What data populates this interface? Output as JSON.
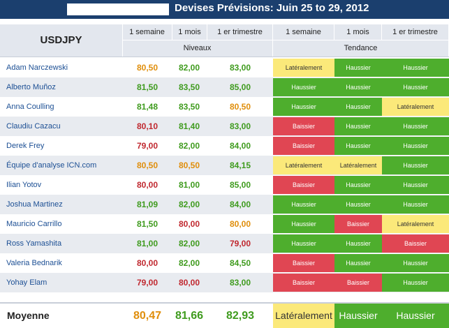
{
  "header": {
    "title": "Devises Prévisions: Juin 25 to 29, 2012",
    "pair": "USDJPY",
    "columns": [
      "1 semaine",
      "1 mois",
      "1 er trimestre",
      "1 semaine",
      "1 mois",
      "1 er trimestre"
    ],
    "groups": {
      "levels": "Niveaux",
      "trend": "Tendance"
    }
  },
  "colors": {
    "green": "#3f9b1e",
    "orange": "#e08e0b",
    "red": "#c0282f",
    "trend_up": "#4eae2d",
    "trend_down": "#e04653",
    "trend_flat": "#fbe97a"
  },
  "rows": [
    {
      "name": "Adam Narczewski",
      "v1": "80,50",
      "c1": "orange",
      "v2": "82,00",
      "c2": "green",
      "v3": "83,00",
      "c3": "green",
      "t1": "Latéralement",
      "k1": "y",
      "t2": "Haussier",
      "k2": "g",
      "t3": "Haussier",
      "k3": "g"
    },
    {
      "name": "Alberto Muñoz",
      "v1": "81,50",
      "c1": "green",
      "v2": "83,50",
      "c2": "green",
      "v3": "85,00",
      "c3": "green",
      "t1": "Haussier",
      "k1": "g",
      "t2": "Haussier",
      "k2": "g",
      "t3": "Haussier",
      "k3": "g"
    },
    {
      "name": "Anna Coulling",
      "v1": "81,48",
      "c1": "green",
      "v2": "83,50",
      "c2": "green",
      "v3": "80,50",
      "c3": "orange",
      "t1": "Haussier",
      "k1": "g",
      "t2": "Haussier",
      "k2": "g",
      "t3": "Latéralement",
      "k3": "y"
    },
    {
      "name": "Claudiu Cazacu",
      "v1": "80,10",
      "c1": "red",
      "v2": "81,40",
      "c2": "green",
      "v3": "83,00",
      "c3": "green",
      "t1": "Baissier",
      "k1": "r",
      "t2": "Haussier",
      "k2": "g",
      "t3": "Haussier",
      "k3": "g"
    },
    {
      "name": "Derek Frey",
      "v1": "79,00",
      "c1": "red",
      "v2": "82,00",
      "c2": "green",
      "v3": "84,00",
      "c3": "green",
      "t1": "Baissier",
      "k1": "r",
      "t2": "Haussier",
      "k2": "g",
      "t3": "Haussier",
      "k3": "g"
    },
    {
      "name": "Équipe d'analyse ICN.com",
      "v1": "80,50",
      "c1": "orange",
      "v2": "80,50",
      "c2": "orange",
      "v3": "84,15",
      "c3": "green",
      "t1": "Latéralement",
      "k1": "y",
      "t2": "Latéralement",
      "k2": "y",
      "t3": "Haussier",
      "k3": "g"
    },
    {
      "name": "Ilian Yotov",
      "v1": "80,00",
      "c1": "red",
      "v2": "81,00",
      "c2": "green",
      "v3": "85,00",
      "c3": "green",
      "t1": "Baissier",
      "k1": "r",
      "t2": "Haussier",
      "k2": "g",
      "t3": "Haussier",
      "k3": "g"
    },
    {
      "name": "Joshua Martinez",
      "v1": "81,09",
      "c1": "green",
      "v2": "82,00",
      "c2": "green",
      "v3": "84,00",
      "c3": "green",
      "t1": "Haussier",
      "k1": "g",
      "t2": "Haussier",
      "k2": "g",
      "t3": "Haussier",
      "k3": "g"
    },
    {
      "name": "Mauricio Carrillo",
      "v1": "81,50",
      "c1": "green",
      "v2": "80,00",
      "c2": "red",
      "v3": "80,00",
      "c3": "orange",
      "t1": "Haussier",
      "k1": "g",
      "t2": "Baissier",
      "k2": "r",
      "t3": "Latéralement",
      "k3": "y"
    },
    {
      "name": "Ross Yamashita",
      "v1": "81,00",
      "c1": "green",
      "v2": "82,00",
      "c2": "green",
      "v3": "79,00",
      "c3": "red",
      "t1": "Haussier",
      "k1": "g",
      "t2": "Haussier",
      "k2": "g",
      "t3": "Baissier",
      "k3": "r"
    },
    {
      "name": "Valeria Bednarik",
      "v1": "80,00",
      "c1": "red",
      "v2": "82,00",
      "c2": "green",
      "v3": "84,50",
      "c3": "green",
      "t1": "Baissier",
      "k1": "r",
      "t2": "Haussier",
      "k2": "g",
      "t3": "Haussier",
      "k3": "g"
    },
    {
      "name": "Yohay Elam",
      "v1": "79,00",
      "c1": "red",
      "v2": "80,00",
      "c2": "red",
      "v3": "83,00",
      "c3": "green",
      "t1": "Baissier",
      "k1": "r",
      "t2": "Baissier",
      "k2": "r",
      "t3": "Haussier",
      "k3": "g"
    }
  ],
  "average": {
    "label": "Moyenne",
    "v1": "80,47",
    "c1": "orange",
    "v2": "81,66",
    "c2": "green",
    "v3": "82,93",
    "c3": "green",
    "t1": "Latéralement",
    "k1": "y",
    "t2": "Haussier",
    "k2": "g",
    "t3": "Haussier",
    "k3": "g"
  }
}
